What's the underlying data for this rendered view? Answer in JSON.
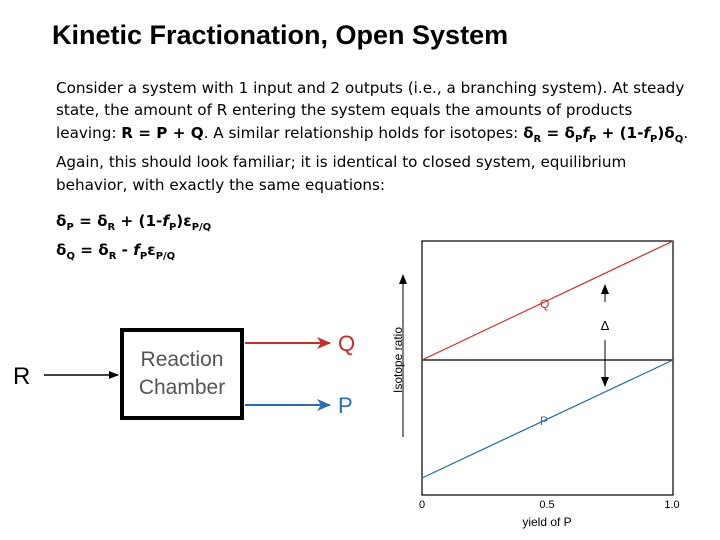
{
  "title": "Kinetic Fractionation, Open System",
  "paragraph": {
    "part1": "Consider a system with 1 input and 2 outputs (i.e., a branching system). At steady state, the amount of R entering the system equals the amounts of products leaving: ",
    "mass_eq": "R = P + Q",
    "part2": ". A similar relationship holds for isotopes: ",
    "iso_eq_a": "δ",
    "iso_eq_b": " = δ",
    "iso_eq_c": " + (1-",
    "iso_eq_d": ")δ",
    "part3": ". Again, this should look familiar; it is identical to closed system, equilibrium behavior, with exactly the same equations:"
  },
  "equations": {
    "eq1": {
      "lhs": "δ",
      "lhs_sub": "P",
      "mid": " = δ",
      "mid_sub": "R",
      "rest": " + (1-",
      "f": "f",
      "f_sub": "P",
      "rest2": ")ε",
      "eps_sub": "P/Q"
    },
    "eq2": {
      "lhs": "δ",
      "lhs_sub": "Q",
      "mid": " = δ",
      "mid_sub": "R",
      "rest": " - ",
      "f": "f",
      "f_sub": "P",
      "rest2": "ε",
      "eps_sub": "P/Q"
    }
  },
  "subs": {
    "R": "R",
    "P": "P",
    "Q": "Q",
    "f": "f"
  },
  "diagram": {
    "input_label": "R",
    "chamber_line1": "Reaction",
    "chamber_line2": "Chamber",
    "output_q": "Q",
    "output_p": "P",
    "colors": {
      "red": "#cc2b2b",
      "blue": "#2a6db5",
      "teal": "#1f6f9a"
    }
  },
  "graph": {
    "ylabel": "Isotope ratio",
    "xlabel": "yield of P",
    "xticks": [
      "0",
      "0.5",
      "1.0"
    ],
    "line_q_label": "Q",
    "line_p_label": "P",
    "arrow_label": "Δ"
  }
}
